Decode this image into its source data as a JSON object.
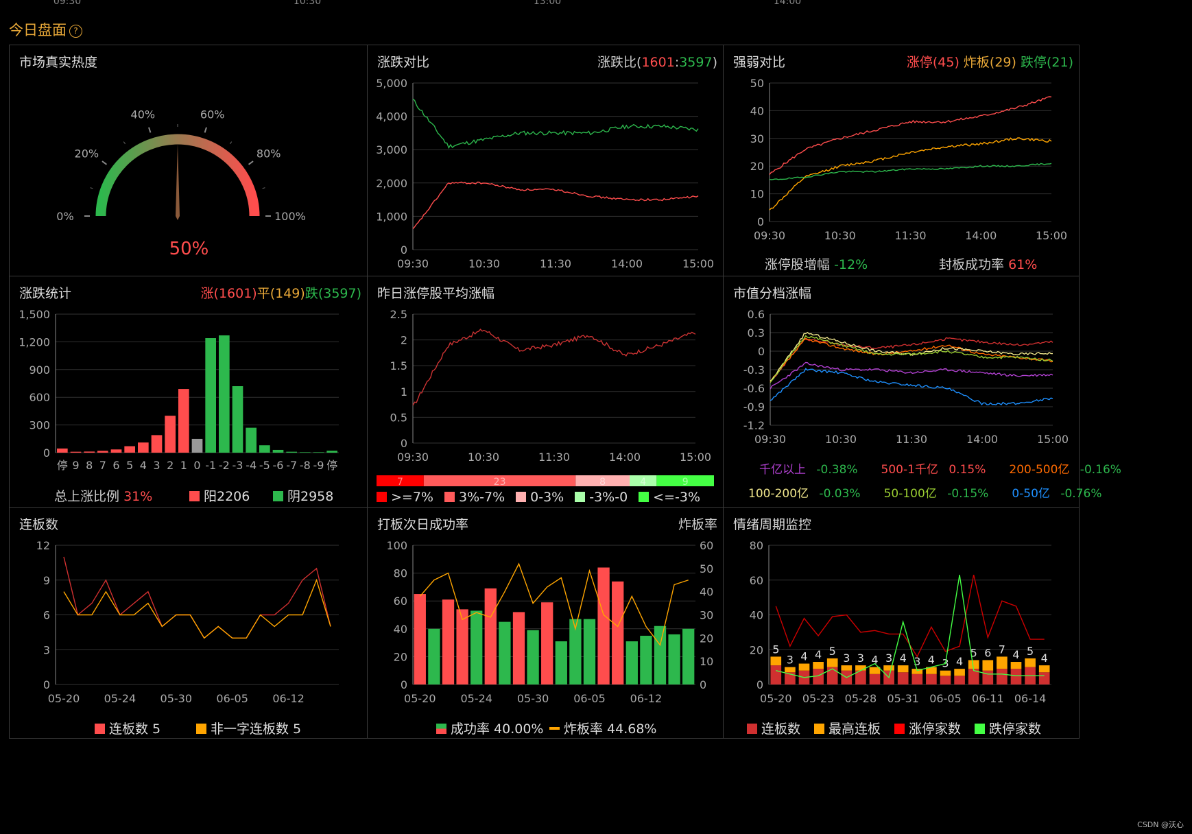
{
  "top_axis_labels": [
    "09:30",
    "10:30",
    "13:00",
    "14:00"
  ],
  "page_title": "今日盘面",
  "watermark": "CSDN @沃心",
  "colors": {
    "up": "#ff4d4d",
    "down": "#2db84d",
    "flat": "#e8a838",
    "grid": "#333",
    "axis": "#aaa"
  },
  "panels": {
    "heat": {
      "title": "市场真实热度",
      "value_label": "50%",
      "value": 50,
      "ticks": [
        "0%",
        "20%",
        "40%",
        "60%",
        "80%",
        "100%"
      ]
    },
    "updown": {
      "title": "涨跌对比",
      "ratio_prefix": "涨跌比(",
      "up": "1601",
      "sep": ":",
      "down": "3597",
      "ratio_suffix": ")"
    },
    "strength": {
      "title": "强弱对比",
      "limit_up": "涨停(45)",
      "broken": "炸板(29)",
      "limit_down": "跌停(21)",
      "inc_label": "涨停股增幅",
      "inc_value": "-12%",
      "seal_label": "封板成功率",
      "seal_value": "61%"
    },
    "stats": {
      "title": "涨跌统计",
      "up": "涨(1601)",
      "flat": "平(149)",
      "down": "跌(3597)",
      "ratio_label": "总上涨比例",
      "ratio_value": "31%",
      "yang": "阳2206",
      "yin": "阴2958"
    },
    "yest": {
      "title": "昨日涨停股平均涨幅",
      "bar_segments": [
        {
          "value": "7",
          "color": "#ff0000",
          "frac": 0.14
        },
        {
          "value": "23",
          "color": "#ff5b5b",
          "frac": 0.45
        },
        {
          "value": "8",
          "color": "#ffb0b0",
          "frac": 0.16
        },
        {
          "value": "4",
          "color": "#aaffaa",
          "frac": 0.08
        },
        {
          "value": "9",
          "color": "#44ff44",
          "frac": 0.17
        }
      ],
      "legend": [
        {
          "label": ">=7%",
          "color": "#ff0000"
        },
        {
          "label": "3%-7%",
          "color": "#ff5b5b"
        },
        {
          "label": "0-3%",
          "color": "#ffb0b0"
        },
        {
          "label": "-3%-0",
          "color": "#aaffaa"
        },
        {
          "label": "<=-3%",
          "color": "#44ff44"
        }
      ]
    },
    "cap": {
      "title": "市值分档涨幅",
      "row1": [
        {
          "name": "千亿以上",
          "value": "-0.38%",
          "name_color": "#b040d0",
          "value_color": "#2db84d"
        },
        {
          "name": "500-1千亿",
          "value": "0.15%",
          "name_color": "#ff4d4d",
          "value_color": "#ff4d4d"
        },
        {
          "name": "200-500亿",
          "value": "-0.16%",
          "name_color": "#ff6a00",
          "value_color": "#2db84d"
        }
      ],
      "row2": [
        {
          "name": "100-200亿",
          "value": "-0.03%",
          "name_color": "#f0e68c",
          "value_color": "#2db84d"
        },
        {
          "name": "50-100亿",
          "value": "-0.15%",
          "name_color": "#9acd32",
          "value_color": "#2db84d"
        },
        {
          "name": "0-50亿",
          "value": "-0.76%",
          "name_color": "#1e90ff",
          "value_color": "#2db84d"
        }
      ]
    },
    "board": {
      "title": "连板数",
      "legend1": "连板数 5",
      "legend2": "非一字连板数 5"
    },
    "success": {
      "title": "打板次日成功率",
      "right_label": "炸板率",
      "legend1": "成功率 40.00%",
      "legend2": "炸板率 44.68%"
    },
    "mood": {
      "title": "情绪周期监控",
      "legend": [
        {
          "label": "连板数",
          "color": "#d03030"
        },
        {
          "label": "最高连板",
          "color": "#ffa500"
        },
        {
          "label": "涨停家数",
          "color": "#ff0000"
        },
        {
          "label": "跌停家数",
          "color": "#44ff44"
        }
      ]
    }
  },
  "chart_data": [
    {
      "type": "gauge",
      "title": "市场真实热度",
      "value": 50,
      "ylim": [
        0,
        100
      ],
      "ticks": [
        "0%",
        "20%",
        "40%",
        "60%",
        "80%",
        "100%"
      ]
    },
    {
      "type": "line",
      "title": "涨跌对比",
      "x": [
        "09:30",
        "10:00",
        "10:30",
        "11:00",
        "11:30",
        "13:30",
        "14:00",
        "14:30",
        "15:00"
      ],
      "ylim": [
        0,
        5000
      ],
      "yticks": [
        "0",
        "1,000",
        "2,000",
        "3,000",
        "4,000",
        "5,000"
      ],
      "xticks": [
        "09:30",
        "10:30",
        "11:30",
        "14:00",
        "15:00"
      ],
      "series": [
        {
          "color": "#2db84d",
          "values": [
            4500,
            3100,
            3300,
            3500,
            3500,
            3500,
            3700,
            3700,
            3600
          ]
        },
        {
          "color": "#ff4d4d",
          "values": [
            600,
            2000,
            2000,
            1800,
            1800,
            1600,
            1500,
            1500,
            1600
          ]
        }
      ]
    },
    {
      "type": "line",
      "title": "强弱对比",
      "x": [
        "09:30",
        "10:00",
        "10:30",
        "11:00",
        "11:30",
        "13:30",
        "14:00",
        "14:30",
        "15:00"
      ],
      "ylim": [
        0,
        50
      ],
      "yticks": [
        "0",
        "10",
        "20",
        "30",
        "40",
        "50"
      ],
      "xticks": [
        "09:30",
        "10:30",
        "11:30",
        "14:00",
        "15:00"
      ],
      "series": [
        {
          "name": "涨停",
          "color": "#ff4d4d",
          "values": [
            17,
            26,
            30,
            33,
            36,
            36,
            38,
            41,
            45
          ]
        },
        {
          "name": "炸板",
          "color": "#ffa500",
          "values": [
            4,
            16,
            20,
            22,
            25,
            27,
            28,
            30,
            29
          ]
        },
        {
          "name": "跌停",
          "color": "#2db84d",
          "values": [
            15,
            16,
            18,
            18,
            19,
            19,
            20,
            20,
            21
          ]
        }
      ]
    },
    {
      "type": "bar",
      "title": "涨跌统计",
      "categories": [
        "停",
        "9",
        "8",
        "7",
        "6",
        "5",
        "4",
        "3",
        "2",
        "1",
        "0",
        "-1",
        "-2",
        "-3",
        "-4",
        "-5",
        "-6",
        "-7",
        "-8",
        "-9",
        "停"
      ],
      "values": [
        45,
        10,
        12,
        20,
        35,
        70,
        110,
        190,
        400,
        690,
        149,
        1240,
        1270,
        720,
        270,
        80,
        30,
        10,
        5,
        5,
        21
      ],
      "ylim": [
        0,
        1500
      ],
      "yticks": [
        "0",
        "300",
        "600",
        "900",
        "1,200",
        "1,500"
      ]
    },
    {
      "type": "line",
      "title": "昨日涨停股平均涨幅",
      "x": [
        "09:30",
        "10:00",
        "10:30",
        "11:00",
        "11:30",
        "13:30",
        "14:00",
        "14:30",
        "15:00"
      ],
      "ylim": [
        0,
        2.5
      ],
      "yticks": [
        "0",
        "0.5",
        "1",
        "1.5",
        "2",
        "2.5"
      ],
      "xticks": [
        "09:30",
        "10:30",
        "11:30",
        "14:00",
        "15:00"
      ],
      "series": [
        {
          "color": "#cc3333",
          "values": [
            0.7,
            1.9,
            2.2,
            1.8,
            1.9,
            2.1,
            1.7,
            1.9,
            2.15
          ]
        }
      ]
    },
    {
      "type": "line",
      "title": "市值分档涨幅",
      "x": [
        "09:30",
        "10:00",
        "10:30",
        "11:00",
        "11:30",
        "13:30",
        "14:00",
        "14:30",
        "15:00"
      ],
      "ylim": [
        -1.2,
        0.6
      ],
      "yticks": [
        "-1.2",
        "-0.9",
        "-0.6",
        "-0.3",
        "0",
        "0.3",
        "0.6"
      ],
      "xticks": [
        "09:30",
        "10:30",
        "11:30",
        "14:00",
        "15:00"
      ],
      "series": [
        {
          "name": "千亿以上",
          "color": "#b040d0",
          "values": [
            -0.6,
            -0.2,
            -0.3,
            -0.3,
            -0.35,
            -0.3,
            -0.35,
            -0.4,
            -0.38
          ]
        },
        {
          "name": "500-1千亿",
          "color": "#d03030",
          "values": [
            -0.5,
            0.2,
            0.1,
            0.05,
            0.1,
            0.2,
            0.15,
            0.1,
            0.15
          ]
        },
        {
          "name": "200-500亿",
          "color": "#ff6a00",
          "values": [
            -0.5,
            0.2,
            0.05,
            -0.05,
            0.0,
            0.1,
            -0.05,
            -0.1,
            -0.16
          ]
        },
        {
          "name": "100-200亿",
          "color": "#f0e68c",
          "values": [
            -0.5,
            0.3,
            0.15,
            0.0,
            -0.05,
            0.05,
            0.0,
            -0.05,
            -0.03
          ]
        },
        {
          "name": "50-100亿",
          "color": "#9acd32",
          "values": [
            -0.5,
            0.25,
            0.1,
            -0.05,
            -0.05,
            0.0,
            -0.1,
            -0.1,
            -0.15
          ]
        },
        {
          "name": "0-50亿",
          "color": "#1e90ff",
          "values": [
            -0.8,
            -0.3,
            -0.35,
            -0.5,
            -0.55,
            -0.6,
            -0.85,
            -0.85,
            -0.76
          ]
        }
      ]
    },
    {
      "type": "line",
      "title": "连板数",
      "categories": [
        "05-20",
        "05-21",
        "05-22",
        "05-23",
        "05-24",
        "05-27",
        "05-28",
        "05-29",
        "05-30",
        "05-31",
        "06-03",
        "06-04",
        "06-05",
        "06-06",
        "06-07",
        "06-11",
        "06-12",
        "06-13",
        "06-14",
        "06-17"
      ],
      "xticks": [
        "05-20",
        "05-24",
        "05-30",
        "06-05",
        "06-12"
      ],
      "ylim": [
        0,
        12
      ],
      "yticks": [
        "0",
        "3",
        "6",
        "9",
        "12"
      ],
      "series": [
        {
          "name": "连板数",
          "color": "#d03030",
          "values": [
            11,
            6,
            7,
            9,
            6,
            7,
            8,
            5,
            6,
            6,
            4,
            5,
            4,
            4,
            6,
            6,
            7,
            9,
            10,
            5
          ]
        },
        {
          "name": "非一字连板数",
          "color": "#ffa500",
          "values": [
            8,
            6,
            6,
            8,
            6,
            6,
            7,
            5,
            6,
            6,
            4,
            5,
            4,
            4,
            6,
            5,
            6,
            6,
            9,
            5
          ]
        }
      ]
    },
    {
      "type": "bar",
      "title": "打板次日成功率",
      "categories": [
        "05-20",
        "05-21",
        "05-22",
        "05-23",
        "05-24",
        "05-27",
        "05-28",
        "05-29",
        "05-30",
        "05-31",
        "06-03",
        "06-04",
        "06-05",
        "06-06",
        "06-07",
        "06-11",
        "06-12",
        "06-13",
        "06-14",
        "06-17"
      ],
      "xticks": [
        "05-20",
        "05-24",
        "05-30",
        "06-05",
        "06-12"
      ],
      "ylim": [
        0,
        100
      ],
      "yticks": [
        "0",
        "20",
        "40",
        "60",
        "80",
        "100"
      ],
      "y2lim": [
        0,
        60
      ],
      "y2ticks": [
        "0",
        "10",
        "20",
        "30",
        "40",
        "50",
        "60"
      ],
      "series": [
        {
          "name": "成功率",
          "values": [
            65,
            40,
            61,
            54,
            53,
            69,
            45,
            52,
            39,
            59,
            31,
            47,
            47,
            84,
            74,
            31,
            35,
            42,
            36,
            40
          ]
        },
        {
          "name": "炸板率",
          "color": "#ffa500",
          "axis": "right",
          "values": [
            38,
            45,
            48,
            28,
            31,
            29,
            40,
            52,
            35,
            42,
            46,
            24,
            49,
            30,
            25,
            38,
            25,
            17,
            43,
            45
          ]
        }
      ]
    },
    {
      "type": "bar",
      "title": "情绪周期监控",
      "categories": [
        "05-20",
        "05-21",
        "05-22",
        "05-23",
        "05-24",
        "05-27",
        "05-28",
        "05-29",
        "05-30",
        "05-31",
        "06-03",
        "06-04",
        "06-05",
        "06-06",
        "06-07",
        "06-11",
        "06-12",
        "06-13",
        "06-14",
        "06-17"
      ],
      "xticks": [
        "05-20",
        "05-23",
        "05-28",
        "05-31",
        "06-05",
        "06-11",
        "06-14"
      ],
      "ylim": [
        0,
        80
      ],
      "yticks": [
        "0",
        "20",
        "40",
        "60",
        "80"
      ],
      "labels": [
        "5",
        "3",
        "4",
        "4",
        "5",
        "3",
        "3",
        "4",
        "3",
        "4",
        "3",
        "4",
        "3",
        "4",
        "5",
        "6",
        "7",
        "4",
        "5",
        "4"
      ],
      "series": [
        {
          "name": "连板数",
          "color": "#d03030",
          "values": [
            11,
            7,
            8,
            9,
            10,
            8,
            8,
            6,
            8,
            7,
            6,
            6,
            5,
            5,
            9,
            8,
            9,
            9,
            10,
            7
          ]
        },
        {
          "name": "最高连板",
          "color": "#ffa500",
          "values": [
            5,
            3,
            4,
            4,
            5,
            3,
            3,
            4,
            3,
            4,
            3,
            4,
            3,
            4,
            5,
            6,
            7,
            4,
            5,
            4
          ]
        },
        {
          "name": "涨停家数",
          "color": "#cc0000",
          "values": [
            45,
            22,
            38,
            28,
            39,
            40,
            30,
            31,
            29,
            29,
            16,
            33,
            19,
            22,
            63,
            27,
            48,
            45,
            26,
            26
          ]
        },
        {
          "name": "跌停家数",
          "color": "#44ff44",
          "values": [
            8,
            6,
            4,
            5,
            9,
            4,
            8,
            12,
            4,
            36,
            8,
            10,
            12,
            63,
            8,
            6,
            6,
            5,
            5,
            5
          ]
        }
      ]
    }
  ]
}
